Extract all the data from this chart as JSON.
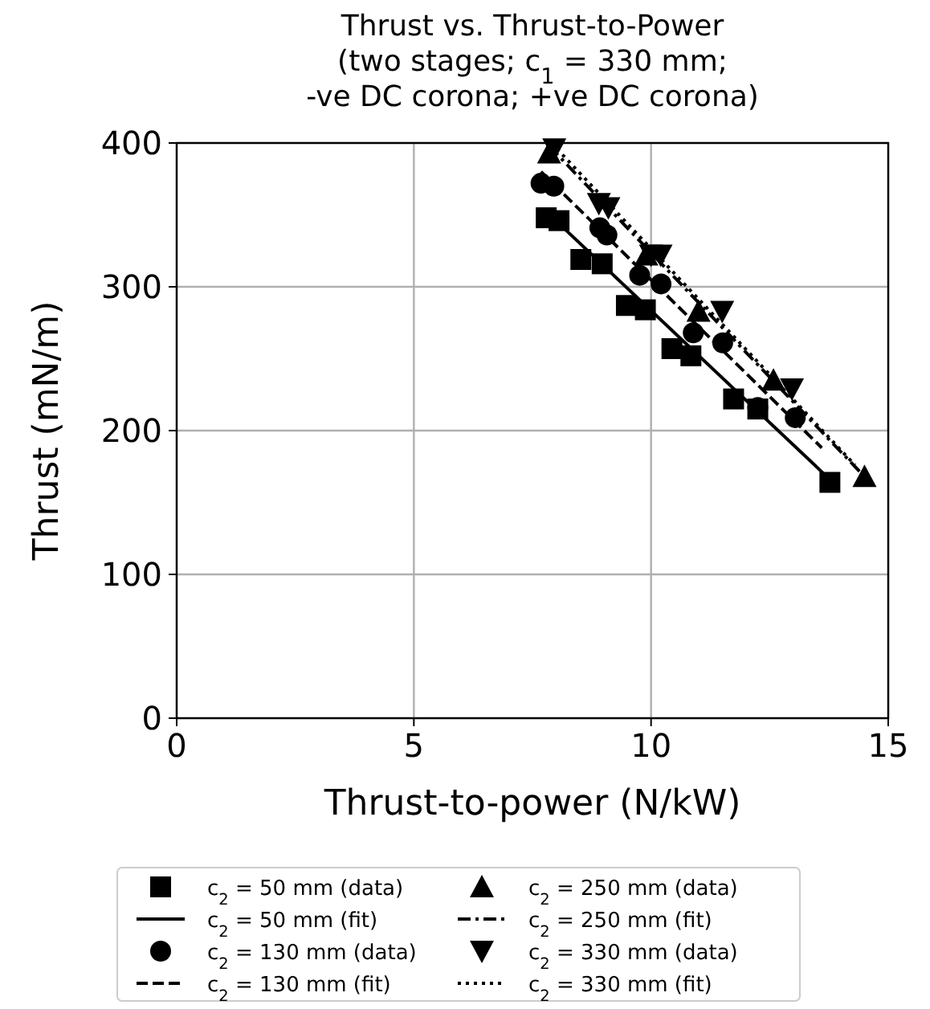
{
  "chart_data": {
    "type": "scatter",
    "title": "Thrust vs. Thrust-to-Power\n(two stages; c$_{1}$ = 330 mm;\n-ve DC corona; +ve DC corona)",
    "xlabel": "Thrust-to-power (N/kW)",
    "ylabel": "Thrust (mN/m)",
    "xlim": [
      0,
      15
    ],
    "ylim": [
      0,
      400
    ],
    "xticks": [
      0,
      5,
      10,
      15
    ],
    "yticks": [
      0,
      100,
      200,
      300,
      400
    ],
    "grid": true,
    "legend": "bottom",
    "series": [
      {
        "name": "c$_{2}$ = 50 mm (data)",
        "color": "#000000",
        "marker": "square",
        "x": [
          7.79,
          8.06,
          8.52,
          8.97,
          9.48,
          9.88,
          10.44,
          10.84,
          11.74,
          12.25,
          13.77
        ],
        "values": [
          348,
          346,
          319,
          316,
          287,
          284,
          257,
          252,
          222,
          215,
          164
        ]
      },
      {
        "name": "c$_{2}$ = 50 mm (fit)",
        "type": "line",
        "color": "#000000",
        "marker": "none",
        "line_style": "solid",
        "x": [
          7.8,
          13.77
        ],
        "values": [
          352,
          166
        ]
      },
      {
        "name": "c$_{2}$ = 130 mm (data)",
        "color": "#000000",
        "marker": "circle",
        "x": [
          7.68,
          7.95,
          8.92,
          9.07,
          9.76,
          10.21,
          10.89,
          11.51,
          12.25,
          13.04
        ],
        "values": [
          372,
          370,
          341,
          336,
          308,
          302,
          268,
          261,
          216,
          209
        ]
      },
      {
        "name": "c$_{2}$ = 130 mm (fit)",
        "type": "line",
        "color": "#000000",
        "marker": "none",
        "line_style": "dashed",
        "x": [
          7.68,
          13.6
        ],
        "values": [
          380,
          188
        ]
      },
      {
        "name": "c$_{2}$ = 250 mm (data)",
        "color": "#000000",
        "marker": "triangle",
        "x": [
          7.85,
          9.9,
          11.0,
          12.58,
          14.5
        ],
        "values": [
          393,
          322,
          283,
          235,
          168
        ]
      },
      {
        "name": "c$_{2}$ = 250 mm (fit)",
        "type": "line",
        "color": "#000000",
        "marker": "none",
        "line_style": "dashdot",
        "x": [
          7.85,
          14.5
        ],
        "values": [
          398,
          168
        ]
      },
      {
        "name": "c$_{2}$ = 330 mm (data)",
        "color": "#000000",
        "marker": "triangle-down",
        "x": [
          7.96,
          8.9,
          9.1,
          10.0,
          10.2,
          11.5,
          12.97
        ],
        "values": [
          396,
          358,
          355,
          322,
          322,
          283,
          229
        ]
      },
      {
        "name": "c$_{2}$ = 330 mm (fit)",
        "type": "line",
        "color": "#000000",
        "marker": "none",
        "line_style": "dotted",
        "x": [
          7.9,
          14.3
        ],
        "values": [
          400,
          176
        ]
      }
    ]
  }
}
